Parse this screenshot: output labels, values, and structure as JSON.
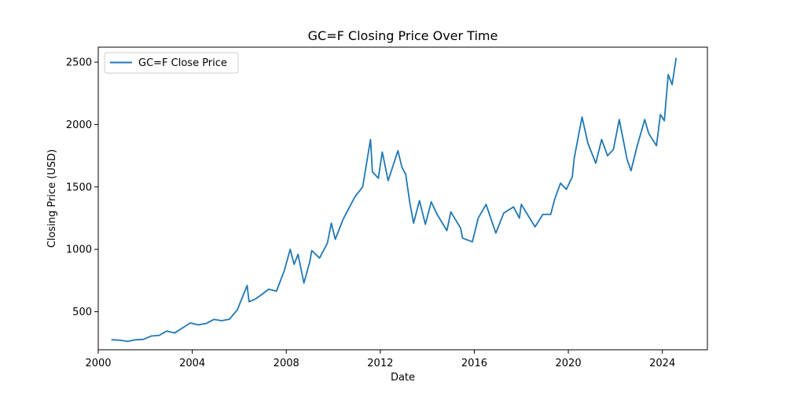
{
  "chart_data": {
    "type": "line",
    "title": "GC=F Closing Price Over Time",
    "xlabel": "Date",
    "ylabel": "Closing Price (USD)",
    "x_range": [
      "2000-01-01",
      "2025-12-01"
    ],
    "ylim": [
      195,
      2620
    ],
    "x_ticks": [
      "2000",
      "2004",
      "2008",
      "2012",
      "2016",
      "2020",
      "2024"
    ],
    "y_ticks": [
      500,
      1000,
      1500,
      2000,
      2500
    ],
    "grid": false,
    "legend_position": "upper-left",
    "line_color": "#1f77b4",
    "series": [
      {
        "name": "GC=F Close Price",
        "points": [
          [
            "2000-08",
            275
          ],
          [
            "2000-12",
            272
          ],
          [
            "2001-04",
            262
          ],
          [
            "2001-08",
            275
          ],
          [
            "2001-12",
            278
          ],
          [
            "2002-04",
            305
          ],
          [
            "2002-08",
            310
          ],
          [
            "2002-12",
            345
          ],
          [
            "2003-04",
            330
          ],
          [
            "2003-08",
            370
          ],
          [
            "2003-12",
            410
          ],
          [
            "2004-04",
            395
          ],
          [
            "2004-08",
            405
          ],
          [
            "2004-12",
            438
          ],
          [
            "2005-04",
            428
          ],
          [
            "2005-08",
            440
          ],
          [
            "2005-12",
            515
          ],
          [
            "2006-05",
            710
          ],
          [
            "2006-06",
            580
          ],
          [
            "2006-09",
            600
          ],
          [
            "2006-12",
            632
          ],
          [
            "2007-04",
            680
          ],
          [
            "2007-08",
            665
          ],
          [
            "2007-12",
            830
          ],
          [
            "2008-03",
            1000
          ],
          [
            "2008-05",
            880
          ],
          [
            "2008-07",
            960
          ],
          [
            "2008-10",
            730
          ],
          [
            "2009-01",
            900
          ],
          [
            "2009-02",
            990
          ],
          [
            "2009-06",
            930
          ],
          [
            "2009-10",
            1050
          ],
          [
            "2009-12",
            1210
          ],
          [
            "2010-02",
            1080
          ],
          [
            "2010-06",
            1240
          ],
          [
            "2010-12",
            1420
          ],
          [
            "2011-04",
            1500
          ],
          [
            "2011-08",
            1880
          ],
          [
            "2011-09",
            1620
          ],
          [
            "2011-12",
            1570
          ],
          [
            "2012-02",
            1780
          ],
          [
            "2012-05",
            1550
          ],
          [
            "2012-10",
            1790
          ],
          [
            "2012-12",
            1660
          ],
          [
            "2013-02",
            1600
          ],
          [
            "2013-04",
            1380
          ],
          [
            "2013-06",
            1210
          ],
          [
            "2013-09",
            1390
          ],
          [
            "2013-12",
            1200
          ],
          [
            "2014-03",
            1380
          ],
          [
            "2014-06",
            1280
          ],
          [
            "2014-11",
            1150
          ],
          [
            "2015-01",
            1300
          ],
          [
            "2015-06",
            1170
          ],
          [
            "2015-07",
            1090
          ],
          [
            "2015-12",
            1060
          ],
          [
            "2016-03",
            1250
          ],
          [
            "2016-07",
            1360
          ],
          [
            "2016-12",
            1130
          ],
          [
            "2017-04",
            1290
          ],
          [
            "2017-09",
            1340
          ],
          [
            "2017-12",
            1250
          ],
          [
            "2018-01",
            1360
          ],
          [
            "2018-08",
            1180
          ],
          [
            "2018-12",
            1280
          ],
          [
            "2019-04",
            1280
          ],
          [
            "2019-06",
            1400
          ],
          [
            "2019-09",
            1530
          ],
          [
            "2019-12",
            1480
          ],
          [
            "2020-03",
            1580
          ],
          [
            "2020-04",
            1730
          ],
          [
            "2020-08",
            2060
          ],
          [
            "2020-11",
            1850
          ],
          [
            "2021-03",
            1690
          ],
          [
            "2021-06",
            1880
          ],
          [
            "2021-09",
            1750
          ],
          [
            "2021-12",
            1800
          ],
          [
            "2022-03",
            2040
          ],
          [
            "2022-07",
            1720
          ],
          [
            "2022-09",
            1630
          ],
          [
            "2022-12",
            1820
          ],
          [
            "2023-04",
            2040
          ],
          [
            "2023-06",
            1930
          ],
          [
            "2023-10",
            1830
          ],
          [
            "2023-12",
            2080
          ],
          [
            "2024-02",
            2030
          ],
          [
            "2024-04",
            2400
          ],
          [
            "2024-06",
            2320
          ],
          [
            "2024-08",
            2530
          ]
        ]
      }
    ]
  }
}
